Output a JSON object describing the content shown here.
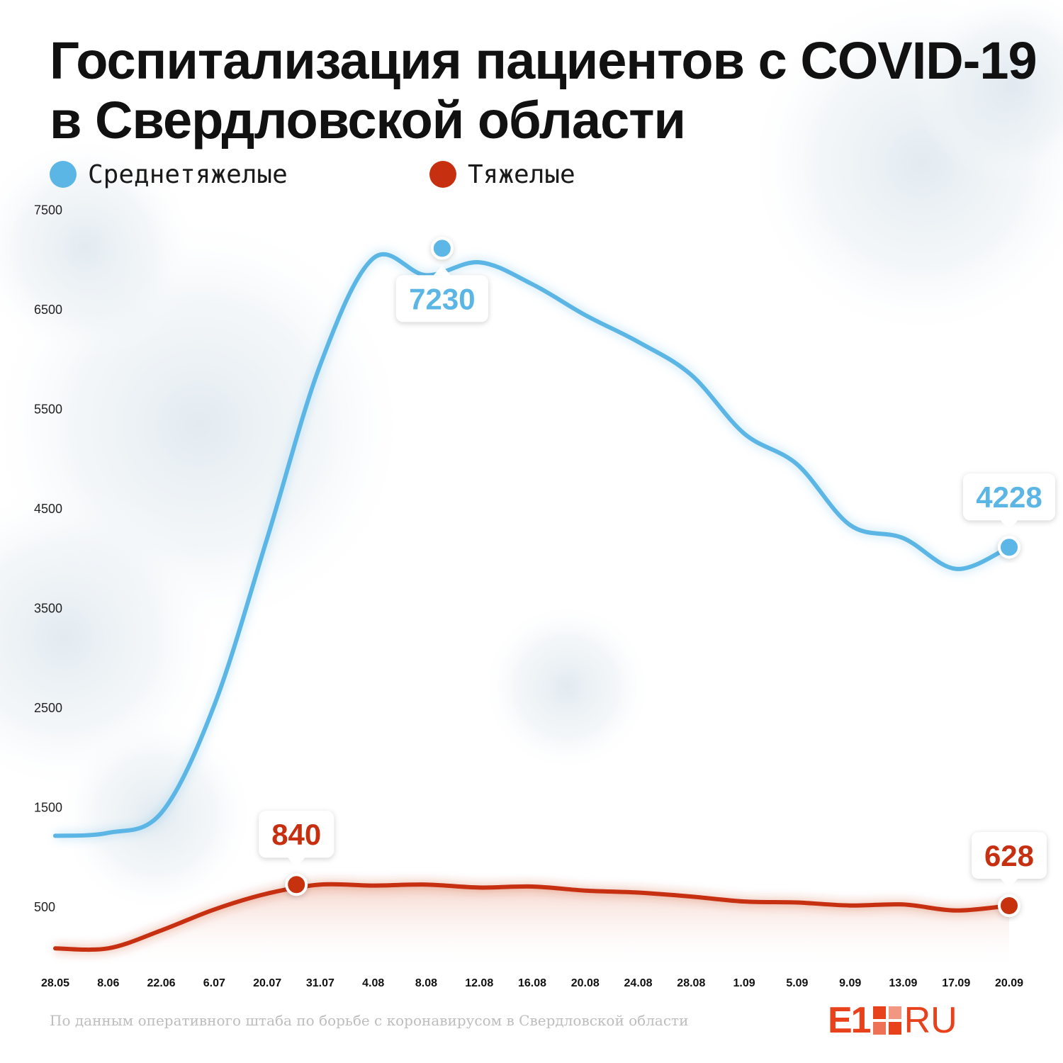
{
  "title": "Госпитализация пациентов с COVID-19 в Свердловской области",
  "legend": [
    {
      "label": "Среднетяжелые",
      "color": "#5bb6e6"
    },
    {
      "label": "Тяжелые",
      "color": "#c63010"
    }
  ],
  "source": "По данным оперативного штаба по борьбе с коронавирусом в Свердловской области",
  "logo": {
    "e1": "E1",
    "ru": "RU",
    "color": "#e8421c"
  },
  "chart_data": {
    "type": "line",
    "x": [
      "28.05",
      "8.06",
      "22.06",
      "6.07",
      "20.07",
      "31.07",
      "4.08",
      "8.08",
      "12.08",
      "16.08",
      "20.08",
      "24.08",
      "28.08",
      "1.09",
      "5.09",
      "9.09",
      "13.09",
      "17.09",
      "20.09"
    ],
    "y_ticks": [
      500,
      1500,
      2500,
      3500,
      4500,
      5500,
      6500,
      7500
    ],
    "ylim": [
      0,
      7500
    ],
    "grid": false,
    "legend_position": "top-left",
    "series": [
      {
        "name": "Среднетяжелые",
        "color": "#5bb6e6",
        "values": [
          1330,
          1360,
          1560,
          2640,
          4320,
          6060,
          7130,
          6960,
          7090,
          6870,
          6560,
          6290,
          5960,
          5370,
          5060,
          4450,
          4320,
          4010,
          4228
        ],
        "callouts": [
          {
            "x": "8.08",
            "label": "7230",
            "value": 7230,
            "anchor_index": 7.3,
            "position": "below"
          },
          {
            "x": "20.09",
            "label": "4228",
            "value": 4228,
            "anchor_index": 18,
            "position": "above"
          }
        ]
      },
      {
        "name": "Тяжелые",
        "color": "#c63010",
        "values": [
          200,
          200,
          380,
          590,
          750,
          840,
          830,
          840,
          810,
          820,
          780,
          760,
          720,
          670,
          660,
          630,
          640,
          580,
          628
        ],
        "callouts": [
          {
            "x": "31.07",
            "label": "840",
            "value": 840,
            "anchor_index": 4.55,
            "position": "above"
          },
          {
            "x": "20.09",
            "label": "628",
            "value": 628,
            "anchor_index": 18,
            "position": "above"
          }
        ]
      }
    ]
  }
}
